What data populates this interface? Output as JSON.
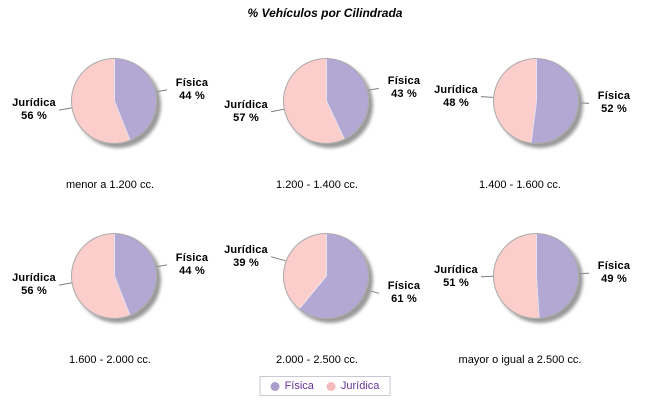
{
  "chart_data": {
    "type": "pie",
    "title": "% Vehículos por Cilindrada",
    "legend_position": "bottom",
    "unit": "%",
    "series": [
      {
        "name": "Física",
        "color": "#b3a8d3",
        "legend_color": "#a99cc9"
      },
      {
        "name": "Jurídica",
        "color": "#fbcecc",
        "legend_color": "#f5b9bb"
      }
    ],
    "pies": [
      {
        "caption": "menor a 1.200 cc.",
        "values": [
          44,
          56
        ],
        "labels": [
          "44 %",
          "56 %"
        ]
      },
      {
        "caption": "1.200 - 1.400 cc.",
        "values": [
          43,
          57
        ],
        "labels": [
          "43 %",
          "57 %"
        ]
      },
      {
        "caption": "1.400 - 1.600 cc.",
        "values": [
          52,
          48
        ],
        "labels": [
          "52 %",
          "48 %"
        ]
      },
      {
        "caption": "1.600 - 2.000 cc.",
        "values": [
          44,
          56
        ],
        "labels": [
          "44 %",
          "56 %"
        ]
      },
      {
        "caption": "2.000 - 2.500 cc.",
        "values": [
          61,
          39
        ],
        "labels": [
          "61 %",
          "39 %"
        ]
      },
      {
        "caption": "mayor o igual a 2.500 cc.",
        "values": [
          49,
          51
        ],
        "labels": [
          "49 %",
          "51 %"
        ]
      }
    ],
    "styles": {
      "leader_line_color": "#7f7f7f",
      "shadow_color": "#9a9a9a",
      "pie_border_color": "#a9a9a9",
      "legend_text_color": "#663399",
      "legend_border_color": "#c9c9d4",
      "title_color": "#000000"
    }
  }
}
